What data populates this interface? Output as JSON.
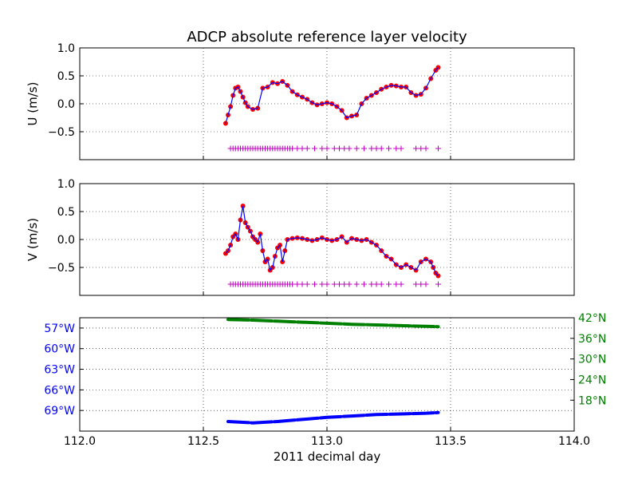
{
  "chart_data": {
    "type": "scatter",
    "title": "ADCP absolute reference layer velocity",
    "xlabel": "2011 decimal day",
    "xlim": [
      112.0,
      114.0
    ],
    "xticks": [
      "112.0",
      "112.5",
      "113.0",
      "113.5",
      "114.0"
    ],
    "xtick_values": [
      112.0,
      112.5,
      113.0,
      113.5,
      114.0
    ],
    "grid": true,
    "panels": [
      {
        "id": "u",
        "ylabel": "U (m/s)",
        "ylim": [
          -1.0,
          1.0
        ],
        "yticks": [
          "1.0",
          "0.5",
          "0.0",
          "−0.5"
        ],
        "ytick_values": [
          1.0,
          0.5,
          0.0,
          -0.5
        ],
        "series": [
          {
            "kind": "dots",
            "color": "#ff0000",
            "x": [
              112.59,
              112.6,
              112.61,
              112.62,
              112.63,
              112.64,
              112.65,
              112.66,
              112.67,
              112.68,
              112.7,
              112.72,
              112.74,
              112.76,
              112.78,
              112.8,
              112.82,
              112.84,
              112.86,
              112.88,
              112.9,
              112.92,
              112.94,
              112.96,
              112.98,
              113.0,
              113.02,
              113.04,
              113.06,
              113.08,
              113.1,
              113.12,
              113.14,
              113.16,
              113.18,
              113.2,
              113.22,
              113.24,
              113.26,
              113.28,
              113.3,
              113.32,
              113.34,
              113.36,
              113.38,
              113.4,
              113.42,
              113.44,
              113.45
            ],
            "y": [
              -0.35,
              -0.2,
              -0.05,
              0.15,
              0.28,
              0.3,
              0.22,
              0.12,
              0.02,
              -0.05,
              -0.1,
              -0.08,
              0.28,
              0.3,
              0.38,
              0.36,
              0.4,
              0.33,
              0.22,
              0.16,
              0.12,
              0.08,
              0.02,
              -0.02,
              0.0,
              0.02,
              0.0,
              -0.05,
              -0.12,
              -0.25,
              -0.22,
              -0.2,
              0.0,
              0.1,
              0.15,
              0.2,
              0.26,
              0.3,
              0.33,
              0.32,
              0.3,
              0.3,
              0.2,
              0.15,
              0.17,
              0.28,
              0.45,
              0.6,
              0.65
            ]
          },
          {
            "kind": "line",
            "color": "#0000ff",
            "x": [
              112.59,
              112.6,
              112.61,
              112.62,
              112.63,
              112.64,
              112.65,
              112.66,
              112.67,
              112.68,
              112.7,
              112.72,
              112.74,
              112.76,
              112.78,
              112.8,
              112.82,
              112.84,
              112.86,
              112.88,
              112.9,
              112.92,
              112.94,
              112.96,
              112.98,
              113.0,
              113.02,
              113.04,
              113.06,
              113.08,
              113.1,
              113.12,
              113.14,
              113.16,
              113.18,
              113.2,
              113.22,
              113.24,
              113.26,
              113.28,
              113.3,
              113.32,
              113.34,
              113.36,
              113.38,
              113.4,
              113.42,
              113.44,
              113.45
            ],
            "y": [
              -0.35,
              -0.2,
              -0.05,
              0.15,
              0.28,
              0.3,
              0.22,
              0.12,
              0.02,
              -0.05,
              -0.1,
              -0.08,
              0.28,
              0.3,
              0.38,
              0.36,
              0.4,
              0.33,
              0.22,
              0.16,
              0.12,
              0.08,
              0.02,
              -0.02,
              0.0,
              0.02,
              0.0,
              -0.05,
              -0.12,
              -0.25,
              -0.22,
              -0.2,
              0.0,
              0.1,
              0.15,
              0.2,
              0.26,
              0.3,
              0.33,
              0.32,
              0.3,
              0.3,
              0.2,
              0.15,
              0.17,
              0.28,
              0.45,
              0.6,
              0.65
            ]
          },
          {
            "kind": "plus",
            "color": "#bf00bf",
            "x": [
              112.61,
              112.62,
              112.63,
              112.64,
              112.65,
              112.66,
              112.67,
              112.68,
              112.69,
              112.7,
              112.71,
              112.72,
              112.73,
              112.74,
              112.75,
              112.76,
              112.77,
              112.78,
              112.79,
              112.8,
              112.81,
              112.82,
              112.83,
              112.84,
              112.85,
              112.86,
              112.88,
              112.9,
              112.92,
              112.95,
              112.98,
              113.0,
              113.03,
              113.05,
              113.07,
              113.09,
              113.12,
              113.15,
              113.18,
              113.2,
              113.22,
              113.25,
              113.28,
              113.3,
              113.36,
              113.38,
              113.4,
              113.45
            ],
            "y": -0.8
          }
        ]
      },
      {
        "id": "v",
        "ylabel": "V (m/s)",
        "ylim": [
          -1.0,
          1.0
        ],
        "yticks": [
          "1.0",
          "0.5",
          "0.0",
          "−0.5"
        ],
        "ytick_values": [
          1.0,
          0.5,
          0.0,
          -0.5
        ],
        "series": [
          {
            "kind": "dots",
            "color": "#ff0000",
            "x": [
              112.59,
              112.6,
              112.61,
              112.62,
              112.63,
              112.64,
              112.65,
              112.66,
              112.67,
              112.68,
              112.69,
              112.7,
              112.71,
              112.72,
              112.73,
              112.74,
              112.75,
              112.76,
              112.77,
              112.78,
              112.79,
              112.8,
              112.81,
              112.82,
              112.83,
              112.84,
              112.86,
              112.88,
              112.9,
              112.92,
              112.94,
              112.96,
              112.98,
              113.0,
              113.02,
              113.04,
              113.06,
              113.08,
              113.1,
              113.12,
              113.14,
              113.16,
              113.18,
              113.2,
              113.22,
              113.24,
              113.26,
              113.28,
              113.3,
              113.32,
              113.34,
              113.36,
              113.38,
              113.4,
              113.42,
              113.43,
              113.44,
              113.45
            ],
            "y": [
              -0.25,
              -0.2,
              -0.1,
              0.05,
              0.1,
              0.0,
              0.35,
              0.6,
              0.3,
              0.22,
              0.15,
              0.05,
              0.0,
              -0.05,
              0.1,
              -0.2,
              -0.4,
              -0.35,
              -0.55,
              -0.5,
              -0.3,
              -0.15,
              -0.1,
              -0.4,
              -0.2,
              0.0,
              0.02,
              0.03,
              0.02,
              0.0,
              -0.02,
              0.0,
              0.03,
              0.0,
              -0.02,
              0.0,
              0.05,
              -0.05,
              0.02,
              0.0,
              -0.02,
              0.0,
              -0.05,
              -0.1,
              -0.2,
              -0.3,
              -0.35,
              -0.45,
              -0.5,
              -0.45,
              -0.5,
              -0.55,
              -0.4,
              -0.35,
              -0.4,
              -0.5,
              -0.6,
              -0.65
            ]
          },
          {
            "kind": "line",
            "color": "#0000ff",
            "x": [
              112.59,
              112.6,
              112.61,
              112.62,
              112.63,
              112.64,
              112.65,
              112.66,
              112.67,
              112.68,
              112.69,
              112.7,
              112.71,
              112.72,
              112.73,
              112.74,
              112.75,
              112.76,
              112.77,
              112.78,
              112.79,
              112.8,
              112.81,
              112.82,
              112.83,
              112.84,
              112.86,
              112.88,
              112.9,
              112.92,
              112.94,
              112.96,
              112.98,
              113.0,
              113.02,
              113.04,
              113.06,
              113.08,
              113.1,
              113.12,
              113.14,
              113.16,
              113.18,
              113.2,
              113.22,
              113.24,
              113.26,
              113.28,
              113.3,
              113.32,
              113.34,
              113.36,
              113.38,
              113.4,
              113.42,
              113.43,
              113.44,
              113.45
            ],
            "y": [
              -0.25,
              -0.2,
              -0.1,
              0.05,
              0.1,
              0.0,
              0.35,
              0.6,
              0.3,
              0.22,
              0.15,
              0.05,
              0.0,
              -0.05,
              0.1,
              -0.2,
              -0.4,
              -0.35,
              -0.55,
              -0.5,
              -0.3,
              -0.15,
              -0.1,
              -0.4,
              -0.2,
              0.0,
              0.02,
              0.03,
              0.02,
              0.0,
              -0.02,
              0.0,
              0.03,
              0.0,
              -0.02,
              0.0,
              0.05,
              -0.05,
              0.02,
              0.0,
              -0.02,
              0.0,
              -0.05,
              -0.1,
              -0.2,
              -0.3,
              -0.35,
              -0.45,
              -0.5,
              -0.45,
              -0.5,
              -0.55,
              -0.4,
              -0.35,
              -0.4,
              -0.5,
              -0.6,
              -0.65
            ]
          },
          {
            "kind": "plus",
            "color": "#bf00bf",
            "x": [
              112.61,
              112.62,
              112.63,
              112.64,
              112.65,
              112.66,
              112.67,
              112.68,
              112.69,
              112.7,
              112.71,
              112.72,
              112.73,
              112.74,
              112.75,
              112.76,
              112.77,
              112.78,
              112.79,
              112.8,
              112.81,
              112.82,
              112.83,
              112.84,
              112.85,
              112.86,
              112.88,
              112.9,
              112.92,
              112.95,
              112.98,
              113.0,
              113.03,
              113.05,
              113.07,
              113.09,
              113.12,
              113.15,
              113.18,
              113.2,
              113.22,
              113.25,
              113.28,
              113.3,
              113.36,
              113.38,
              113.4,
              113.45
            ],
            "y": -0.8
          }
        ]
      },
      {
        "id": "pos",
        "left_ylim": [
          -72.0,
          -55.5
        ],
        "left_yticks": [
          "57°W",
          "60°W",
          "63°W",
          "66°W",
          "69°W"
        ],
        "left_ytick_values": [
          -57,
          -60,
          -63,
          -66,
          -69
        ],
        "left_color": "#0000ff",
        "right_ylim": [
          9.0,
          42.0
        ],
        "right_yticks": [
          "42°N",
          "36°N",
          "30°N",
          "24°N",
          "18°N"
        ],
        "right_ytick_values": [
          42,
          36,
          30,
          24,
          18
        ],
        "right_color": "#008000",
        "series": [
          {
            "name": "lon",
            "axis": "left",
            "color": "#0000ff",
            "x": [
              112.6,
              112.7,
              112.8,
              112.9,
              113.0,
              113.1,
              113.2,
              113.3,
              113.4,
              113.45
            ],
            "y": [
              -70.6,
              -70.8,
              -70.6,
              -70.3,
              -70.0,
              -69.8,
              -69.6,
              -69.5,
              -69.4,
              -69.3
            ]
          },
          {
            "name": "lat",
            "axis": "right",
            "color": "#008000",
            "x": [
              112.6,
              112.7,
              112.8,
              112.9,
              113.0,
              113.1,
              113.2,
              113.3,
              113.4,
              113.45
            ],
            "y": [
              41.5,
              41.3,
              41.0,
              40.7,
              40.4,
              40.1,
              39.9,
              39.7,
              39.5,
              39.4
            ]
          }
        ]
      }
    ]
  }
}
